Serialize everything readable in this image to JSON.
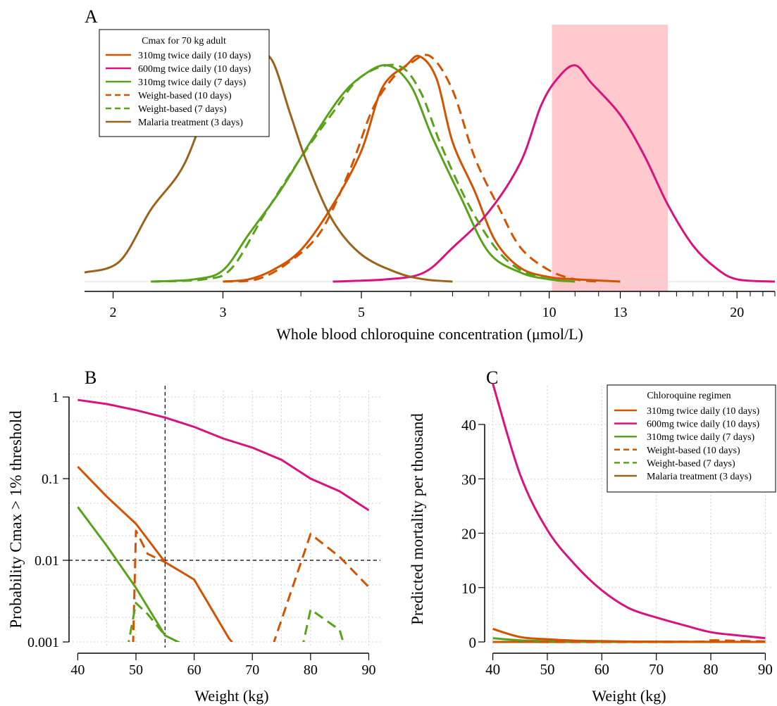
{
  "colors": {
    "orange": "#d35400",
    "magenta": "#d9127e",
    "green": "#5aa21c",
    "brown": "#99631b",
    "threshold_band": "#ffc9ce"
  },
  "chart_data": [
    {
      "panel": "A",
      "type": "line",
      "title": "",
      "xlabel": "Whole blood chloroquine concentration (μmol/L)",
      "ylabel": "",
      "x_scale": "log",
      "xlim": [
        1.8,
        23
      ],
      "x_ticks": [
        2,
        3,
        5,
        10,
        13,
        20
      ],
      "x_minor_ticks": [
        4,
        6,
        7,
        8,
        9,
        11,
        12,
        14,
        15,
        16,
        17,
        18,
        19,
        21,
        22,
        23
      ],
      "shaded_band": [
        10.1,
        15.5
      ],
      "y_unit": "relative density (0-1)",
      "legend": {
        "title": "Cmax for 70 kg adult",
        "placement": "top-left"
      },
      "series": [
        {
          "name": "310mg twice daily (10 days)",
          "color": "orange",
          "dash": false,
          "points": [
            [
              3,
              0.0
            ],
            [
              3.3,
              0.01
            ],
            [
              3.6,
              0.05
            ],
            [
              4.0,
              0.14
            ],
            [
              4.5,
              0.34
            ],
            [
              5.0,
              0.58
            ],
            [
              5.4,
              0.86
            ],
            [
              5.9,
              0.96
            ],
            [
              6.2,
              1.0
            ],
            [
              6.6,
              0.9
            ],
            [
              7.0,
              0.62
            ],
            [
              7.6,
              0.4
            ],
            [
              8.2,
              0.18
            ],
            [
              9.0,
              0.06
            ],
            [
              10,
              0.02
            ],
            [
              11,
              0.01
            ],
            [
              13,
              0.0
            ]
          ]
        },
        {
          "name": "600mg twice daily (10 days)",
          "color": "magenta",
          "dash": false,
          "points": [
            [
              4.5,
              0.0
            ],
            [
              5.5,
              0.01
            ],
            [
              6.3,
              0.04
            ],
            [
              7,
              0.15
            ],
            [
              8,
              0.31
            ],
            [
              9,
              0.53
            ],
            [
              9.7,
              0.78
            ],
            [
              10.3,
              0.9
            ],
            [
              11,
              0.96
            ],
            [
              11.7,
              0.88
            ],
            [
              13,
              0.74
            ],
            [
              14.2,
              0.56
            ],
            [
              15.5,
              0.34
            ],
            [
              17,
              0.16
            ],
            [
              18.5,
              0.06
            ],
            [
              20,
              0.01
            ],
            [
              23,
              0.0
            ]
          ]
        },
        {
          "name": "310mg twice daily (7 days)",
          "color": "green",
          "dash": false,
          "points": [
            [
              2.3,
              0.0
            ],
            [
              2.7,
              0.01
            ],
            [
              3.0,
              0.05
            ],
            [
              3.3,
              0.21
            ],
            [
              3.7,
              0.4
            ],
            [
              4.1,
              0.6
            ],
            [
              4.6,
              0.81
            ],
            [
              5.0,
              0.91
            ],
            [
              5.5,
              0.96
            ],
            [
              6.0,
              0.87
            ],
            [
              6.5,
              0.64
            ],
            [
              7.2,
              0.38
            ],
            [
              8.0,
              0.13
            ],
            [
              9.0,
              0.04
            ],
            [
              10,
              0.01
            ],
            [
              11,
              0.0
            ]
          ]
        },
        {
          "name": "Weight-based (10 days)",
          "color": "orange",
          "dash": true,
          "points": [
            [
              3,
              0.0
            ],
            [
              3.4,
              0.01
            ],
            [
              3.8,
              0.08
            ],
            [
              4.3,
              0.22
            ],
            [
              4.8,
              0.5
            ],
            [
              5.2,
              0.76
            ],
            [
              5.6,
              0.9
            ],
            [
              6.0,
              0.97
            ],
            [
              6.45,
              1.0
            ],
            [
              7.0,
              0.85
            ],
            [
              7.6,
              0.55
            ],
            [
              8.3,
              0.33
            ],
            [
              9.0,
              0.15
            ],
            [
              10,
              0.05
            ],
            [
              11,
              0.01
            ],
            [
              12,
              0.0
            ]
          ]
        },
        {
          "name": "Weight-based (7 days)",
          "color": "green",
          "dash": true,
          "points": [
            [
              2.3,
              0.0
            ],
            [
              2.8,
              0.01
            ],
            [
              3.1,
              0.06
            ],
            [
              3.5,
              0.3
            ],
            [
              4.0,
              0.55
            ],
            [
              4.5,
              0.75
            ],
            [
              5.0,
              0.91
            ],
            [
              5.7,
              0.96
            ],
            [
              6.2,
              0.85
            ],
            [
              6.7,
              0.61
            ],
            [
              7.4,
              0.35
            ],
            [
              8.2,
              0.15
            ],
            [
              9.0,
              0.05
            ],
            [
              10,
              0.01
            ],
            [
              11,
              0.0
            ]
          ]
        },
        {
          "name": "Malaria treatment (3 days)",
          "color": "brown",
          "dash": false,
          "points": [
            [
              1.8,
              0.04
            ],
            [
              2.05,
              0.09
            ],
            [
              2.3,
              0.32
            ],
            [
              2.6,
              0.52
            ],
            [
              2.9,
              0.86
            ],
            [
              3.1,
              0.97
            ],
            [
              3.4,
              1.0
            ],
            [
              3.6,
              0.98
            ],
            [
              3.85,
              0.74
            ],
            [
              4.1,
              0.52
            ],
            [
              4.5,
              0.27
            ],
            [
              5.0,
              0.12
            ],
            [
              5.7,
              0.04
            ],
            [
              6.3,
              0.01
            ],
            [
              7,
              0.0
            ]
          ]
        }
      ]
    },
    {
      "panel": "B",
      "type": "line",
      "title": "",
      "xlabel": "Weight (kg)",
      "ylabel": "Probability Cmax > 1% threshold",
      "y_scale": "log",
      "xlim": [
        38.5,
        92
      ],
      "ylim": [
        0.001,
        1
      ],
      "x_ticks": [
        40,
        50,
        60,
        70,
        80,
        90
      ],
      "y_ticks": [
        0.001,
        0.01,
        0.1,
        1
      ],
      "y_tick_labels": [
        "0.001",
        "0.01",
        "0.1",
        "1"
      ],
      "reference_lines": {
        "vertical_x": 55,
        "horizontal_y": 0.01
      },
      "series": [
        {
          "name": "600mg twice daily (10 days)",
          "color": "magenta",
          "dash": false,
          "points": [
            [
              40,
              0.92
            ],
            [
              45,
              0.82
            ],
            [
              50,
              0.69
            ],
            [
              55,
              0.56
            ],
            [
              60,
              0.43
            ],
            [
              65,
              0.31
            ],
            [
              70,
              0.24
            ],
            [
              75,
              0.17
            ],
            [
              80,
              0.1
            ],
            [
              85,
              0.07
            ],
            [
              90,
              0.041
            ]
          ]
        },
        {
          "name": "310mg twice daily (10 days)",
          "color": "orange",
          "dash": false,
          "points": [
            [
              40,
              0.14
            ],
            [
              45,
              0.06
            ],
            [
              50,
              0.028
            ],
            [
              55,
              0.0095
            ],
            [
              60,
              0.0058
            ],
            [
              66,
              0.0011
            ],
            [
              67,
              0.0009
            ]
          ]
        },
        {
          "name": "310mg twice daily (7 days)",
          "color": "green",
          "dash": false,
          "points": [
            [
              40,
              0.045
            ],
            [
              45,
              0.015
            ],
            [
              50,
              0.0046
            ],
            [
              55,
              0.0012
            ],
            [
              60,
              0.0008
            ]
          ]
        },
        {
          "name": "Weight-based (10 days)",
          "color": "orange",
          "dash": true,
          "points": [
            [
              49.5,
              0.0009
            ],
            [
              50,
              0.023
            ],
            [
              52,
              0.012
            ],
            [
              55,
              0.0095
            ]
          ]
        },
        {
          "name": "Weight-based (10 days)",
          "color": "orange",
          "dash": true,
          "points": [
            [
              73.5,
              0.0009
            ],
            [
              80,
              0.021
            ],
            [
              85,
              0.011
            ],
            [
              90,
              0.0047
            ]
          ]
        },
        {
          "name": "Weight-based (7 days)",
          "color": "green",
          "dash": true,
          "points": [
            [
              48.5,
              0.0008
            ],
            [
              50,
              0.003
            ],
            [
              52,
              0.0022
            ],
            [
              55,
              0.0012
            ]
          ]
        },
        {
          "name": "Weight-based (7 days)",
          "color": "green",
          "dash": true,
          "points": [
            [
              78.5,
              0.0008
            ],
            [
              80,
              0.0025
            ],
            [
              85,
              0.0014
            ],
            [
              86,
              0.0008
            ]
          ]
        }
      ]
    },
    {
      "panel": "C",
      "type": "line",
      "title": "",
      "xlabel": "Weight (kg)",
      "ylabel": "Predicted mortality per thousand",
      "xlim": [
        38.5,
        91.5
      ],
      "ylim": [
        -1,
        48
      ],
      "x_ticks": [
        40,
        50,
        60,
        70,
        80,
        90
      ],
      "y_ticks": [
        0,
        10,
        20,
        30,
        40
      ],
      "legend": {
        "title": "Chloroquine regimen",
        "placement": "top-right"
      },
      "series": [
        {
          "name": "310mg twice daily (10 days)",
          "color": "orange",
          "dash": false,
          "points": [
            [
              40,
              2.4
            ],
            [
              45,
              0.9
            ],
            [
              50,
              0.5
            ],
            [
              55,
              0.25
            ],
            [
              60,
              0.15
            ],
            [
              65,
              0.08
            ],
            [
              70,
              0.05
            ],
            [
              80,
              0.02
            ],
            [
              90,
              0.0
            ]
          ]
        },
        {
          "name": "600mg twice daily (10 days)",
          "color": "magenta",
          "dash": false,
          "points": [
            [
              40,
              47.5
            ],
            [
              45,
              30.8
            ],
            [
              50,
              20.6
            ],
            [
              55,
              14.3
            ],
            [
              60,
              9.5
            ],
            [
              65,
              6.2
            ],
            [
              70,
              4.5
            ],
            [
              75,
              3.1
            ],
            [
              80,
              1.8
            ],
            [
              85,
              1.2
            ],
            [
              90,
              0.7
            ]
          ]
        },
        {
          "name": "310mg twice daily (7 days)",
          "color": "green",
          "dash": false,
          "points": [
            [
              40,
              0.7
            ],
            [
              45,
              0.3
            ],
            [
              50,
              0.15
            ],
            [
              55,
              0.05
            ],
            [
              60,
              0.0
            ],
            [
              90,
              0.0
            ]
          ]
        },
        {
          "name": "Weight-based (10 days)",
          "color": "orange",
          "dash": true,
          "points": [
            [
              40,
              0.0
            ],
            [
              75,
              0.0
            ],
            [
              80,
              0.3
            ],
            [
              85,
              0.2
            ],
            [
              90,
              0.1
            ]
          ]
        },
        {
          "name": "Weight-based (7 days)",
          "color": "green",
          "dash": true,
          "points": [
            [
              40,
              0.0
            ],
            [
              80,
              0.05
            ],
            [
              90,
              0.0
            ]
          ]
        },
        {
          "name": "Malaria treatment (3 days)",
          "color": "brown",
          "dash": false,
          "points": [
            [
              40,
              0.0
            ],
            [
              90,
              0.0
            ]
          ]
        }
      ]
    }
  ],
  "panel_labels": {
    "a": "A",
    "b": "B",
    "c": "C"
  }
}
